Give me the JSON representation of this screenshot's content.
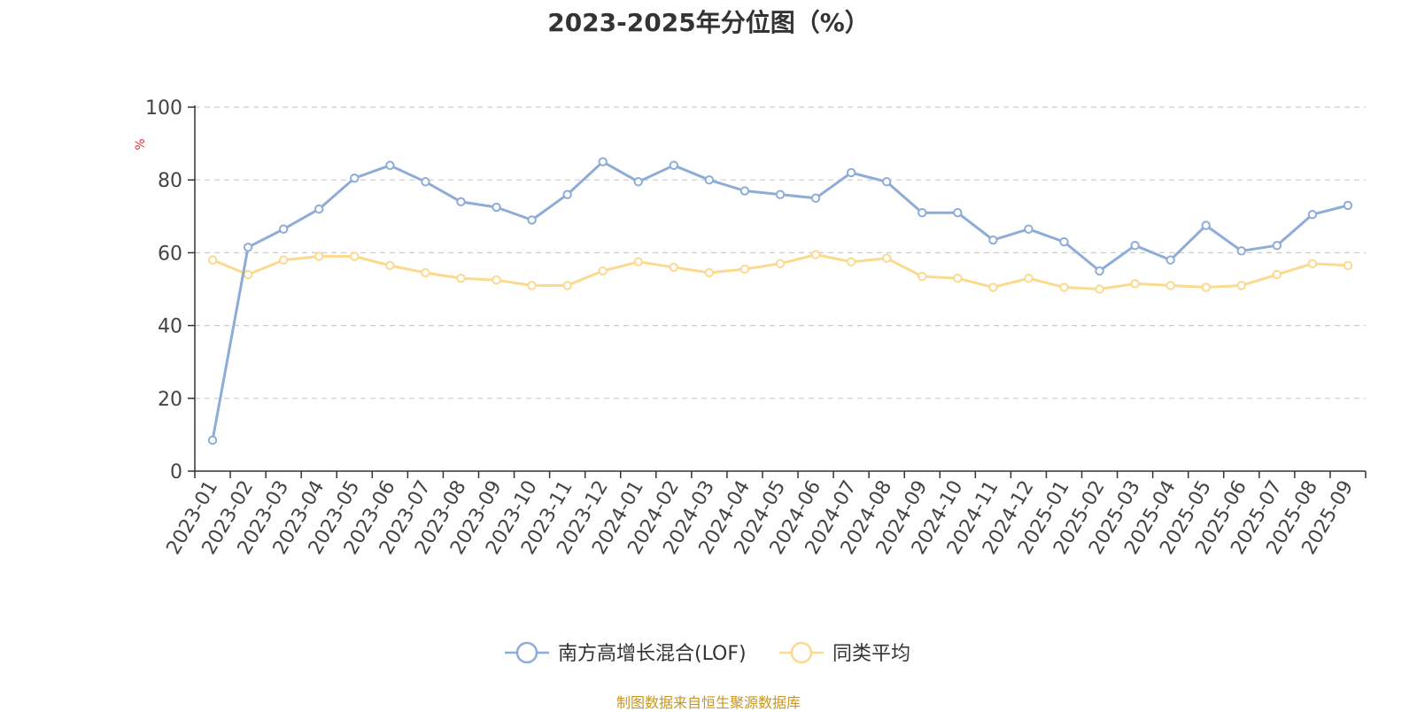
{
  "chart_data": {
    "type": "line",
    "title": "2023-2025年分位图（%）",
    "ylabel": "%",
    "xlabel": "",
    "ylim": [
      0,
      100
    ],
    "yticks": [
      0,
      20,
      40,
      60,
      80,
      100
    ],
    "grid": true,
    "legend_position": "bottom-center",
    "categories": [
      "2023-01",
      "2023-02",
      "2023-03",
      "2023-04",
      "2023-05",
      "2023-06",
      "2023-07",
      "2023-08",
      "2023-09",
      "2023-10",
      "2023-11",
      "2023-12",
      "2024-01",
      "2024-02",
      "2024-03",
      "2024-04",
      "2024-05",
      "2024-06",
      "2024-07",
      "2024-08",
      "2024-09",
      "2024-10",
      "2024-11",
      "2024-12",
      "2025-01",
      "2025-02",
      "2025-03",
      "2025-04",
      "2025-05",
      "2025-06",
      "2025-07",
      "2025-08",
      "2025-09"
    ],
    "series": [
      {
        "name": "南方高增长混合(LOF)",
        "color": "#8eacd8",
        "values": [
          8.5,
          61.5,
          66.5,
          72,
          80.5,
          84,
          79.5,
          74,
          72.5,
          69,
          76,
          85,
          79.5,
          84,
          80,
          77,
          76,
          75,
          82,
          79.5,
          71,
          71,
          63.5,
          66.5,
          63,
          55,
          62,
          58,
          67.5,
          60.5,
          62,
          70.5,
          73
        ]
      },
      {
        "name": "同类平均",
        "color": "#fbd98f",
        "values": [
          58,
          54,
          58,
          59,
          59,
          56.5,
          54.5,
          53,
          52.5,
          51,
          51,
          55,
          57.5,
          56,
          54.5,
          55.5,
          57,
          59.5,
          57.5,
          58.5,
          53.5,
          53,
          50.5,
          53,
          50.5,
          50,
          51.5,
          51,
          50.5,
          51,
          54,
          57,
          56.5
        ]
      }
    ]
  },
  "footer": {
    "source": "制图数据来自恒生聚源数据库"
  }
}
